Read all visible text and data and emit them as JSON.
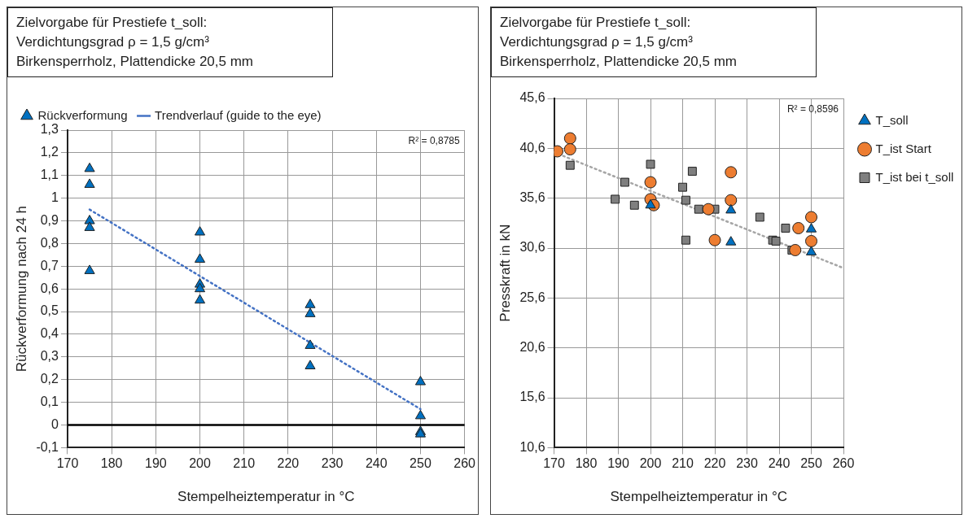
{
  "chart_data": [
    {
      "type": "scatter",
      "xlabel": "Stempelheiztemperatur in °C",
      "ylabel": "Rückverformung nach 24 h",
      "annotations": [
        "Zielvorgabe für Prestiefe t_soll:\nVerdichtungsgrad ρ = 1,5 g/cm³\nBirkensperrholz, Plattendicke 20,5 mm",
        "R² = 0,8785"
      ],
      "xlim": [
        170,
        260
      ],
      "xticks": [
        170,
        180,
        190,
        200,
        210,
        220,
        230,
        240,
        250,
        260
      ],
      "ylim": [
        -0.1,
        1.3
      ],
      "yticks": [
        {
          "value": -0.1,
          "label": "-0,1"
        },
        {
          "value": 0,
          "label": "0"
        },
        {
          "value": 0.1,
          "label": "0,1"
        },
        {
          "value": 0.2,
          "label": "0,2"
        },
        {
          "value": 0.3,
          "label": "0,3"
        },
        {
          "value": 0.4,
          "label": "0,4"
        },
        {
          "value": 0.5,
          "label": "0,5"
        },
        {
          "value": 0.6,
          "label": "0,6"
        },
        {
          "value": 0.7,
          "label": "0,7"
        },
        {
          "value": 0.8,
          "label": "0,8"
        },
        {
          "value": 0.9,
          "label": "0,9"
        },
        {
          "value": 1,
          "label": "1"
        },
        {
          "value": 1.1,
          "label": "1,1"
        },
        {
          "value": 1.2,
          "label": "1,2"
        },
        {
          "value": 1.3,
          "label": "1,3"
        }
      ],
      "grid": true,
      "legend": "top",
      "ref_lines": [
        {
          "axis": "y",
          "value": 0,
          "color": "#000000"
        }
      ],
      "series": [
        {
          "name": "Rückverformung",
          "color": "#0070c0",
          "marker": "triangle",
          "x": [
            175,
            175,
            175,
            175,
            175,
            200,
            200,
            200,
            200,
            200,
            225,
            225,
            225,
            225,
            250,
            250,
            250,
            250
          ],
          "values": [
            1.13,
            1.06,
            0.9,
            0.87,
            0.68,
            0.85,
            0.73,
            0.62,
            0.6,
            0.55,
            0.53,
            0.49,
            0.35,
            0.26,
            0.19,
            0.04,
            -0.03,
            -0.04
          ]
        },
        {
          "name": "Trendverlauf (guide to the eye)",
          "type": "line",
          "color": "#4472c4",
          "line_style": "dotted",
          "marker": "none",
          "x": [
            175,
            250
          ],
          "values": [
            0.95,
            0.07
          ]
        }
      ]
    },
    {
      "type": "scatter",
      "xlabel": "Stempelheiztemperatur in °C",
      "ylabel": "Presskraft in kN",
      "annotations": [
        "Zielvorgabe für Prestiefe t_soll:\nVerdichtungsgrad ρ = 1,5 g/cm³\nBirkensperrholz, Plattendicke 20,5 mm",
        "R² = 0,8596"
      ],
      "xlim": [
        170,
        260
      ],
      "xticks": [
        170,
        180,
        190,
        200,
        210,
        220,
        230,
        240,
        250,
        260
      ],
      "ylim": [
        10.6,
        45.6
      ],
      "yticks": [
        {
          "value": 10.6,
          "label": "10,6"
        },
        {
          "value": 15.6,
          "label": "15,6"
        },
        {
          "value": 20.6,
          "label": "20,6"
        },
        {
          "value": 25.6,
          "label": "25,6"
        },
        {
          "value": 30.6,
          "label": "30,6"
        },
        {
          "value": 35.6,
          "label": "35,6"
        },
        {
          "value": 40.6,
          "label": "40,6"
        },
        {
          "value": 45.6,
          "label": "45,6"
        }
      ],
      "grid": true,
      "legend": "right",
      "series": [
        {
          "name": "T_soll",
          "color": "#0070c0",
          "marker": "triangle",
          "x": [
            200,
            225,
            225,
            250,
            250
          ],
          "values": [
            34.9,
            34.4,
            31.2,
            32.5,
            30.2
          ]
        },
        {
          "name": "T_ist Start",
          "color": "#ed7d31",
          "marker": "circle",
          "x": [
            171,
            175,
            175,
            200,
            200,
            201,
            218,
            220,
            225,
            225,
            245,
            246,
            250,
            250
          ],
          "values": [
            40.3,
            41.6,
            40.5,
            37.2,
            35.5,
            34.9,
            34.5,
            31.4,
            38.2,
            35.4,
            30.4,
            32.6,
            33.7,
            31.3
          ]
        },
        {
          "name": "T_ist bei t_soll",
          "color": "#7f7f7f",
          "marker": "square",
          "x": [
            175,
            189,
            192,
            195,
            200,
            210,
            211,
            211,
            213,
            215,
            220,
            234,
            238,
            239,
            242,
            244
          ],
          "values": [
            38.9,
            35.5,
            37.2,
            34.9,
            39.0,
            36.7,
            35.4,
            31.4,
            38.3,
            34.5,
            34.5,
            33.7,
            31.4,
            31.3,
            32.6,
            30.4
          ]
        },
        {
          "type": "line",
          "color": "#a6a6a6",
          "line_style": "dotted",
          "marker": "none",
          "x": [
            170,
            260
          ],
          "values": [
            40.2,
            28.6
          ]
        }
      ]
    }
  ]
}
